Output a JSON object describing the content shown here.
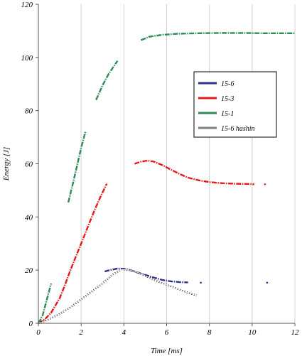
{
  "chart_data": {
    "type": "line",
    "title": "",
    "xlabel": "Time [ms]",
    "ylabel": "Energy [J]",
    "xlim": [
      0,
      12
    ],
    "ylim": [
      0,
      120
    ],
    "xticks": [
      0,
      2,
      4,
      6,
      8,
      10,
      12
    ],
    "yticks": [
      0,
      20,
      40,
      60,
      80,
      100,
      120
    ],
    "grid": "vertical",
    "legend_position": "right-middle",
    "series": [
      {
        "name": "15-6",
        "color": "#2e3192",
        "style": "solid",
        "segments": [
          [
            [
              3.1,
              19.5
            ],
            [
              3.4,
              20.1
            ],
            [
              3.7,
              20.6
            ],
            [
              4.0,
              20.5
            ],
            [
              4.3,
              20.0
            ],
            [
              4.6,
              19.2
            ],
            [
              5.0,
              18.2
            ],
            [
              5.4,
              17.2
            ],
            [
              5.8,
              16.3
            ],
            [
              6.2,
              15.8
            ],
            [
              6.6,
              15.5
            ],
            [
              7.0,
              15.4
            ]
          ],
          [
            [
              7.6,
              15.3
            ]
          ],
          [
            [
              10.7,
              15.3
            ]
          ]
        ]
      },
      {
        "name": "15-3",
        "color": "#e41a1c",
        "style": "solid",
        "segments": [
          [
            [
              0.0,
              0.0
            ],
            [
              0.3,
              1.5
            ],
            [
              0.6,
              4.0
            ],
            [
              1.0,
              9.5
            ],
            [
              1.2,
              13.5
            ],
            [
              1.5,
              20.0
            ],
            [
              1.7,
              24.0
            ],
            [
              2.0,
              30.0
            ],
            [
              2.3,
              36.0
            ],
            [
              2.6,
              42.0
            ],
            [
              2.9,
              47.5
            ],
            [
              3.2,
              52.5
            ]
          ],
          [
            [
              4.5,
              60.0
            ],
            [
              4.8,
              60.8
            ],
            [
              5.1,
              61.2
            ],
            [
              5.4,
              60.8
            ],
            [
              5.8,
              59.5
            ],
            [
              6.2,
              57.8
            ],
            [
              6.6,
              56.2
            ],
            [
              7.0,
              54.8
            ],
            [
              7.5,
              53.8
            ],
            [
              8.0,
              53.1
            ],
            [
              8.6,
              52.7
            ],
            [
              9.2,
              52.5
            ],
            [
              9.8,
              52.4
            ],
            [
              10.1,
              52.3
            ]
          ],
          [
            [
              10.6,
              52.3
            ]
          ]
        ]
      },
      {
        "name": "15-1",
        "color": "#2e8b57",
        "style": "solid",
        "segments": [
          [
            [
              0.0,
              0.0
            ],
            [
              0.2,
              3.0
            ],
            [
              0.4,
              9.0
            ],
            [
              0.6,
              15.0
            ]
          ],
          [
            [
              1.4,
              45.5
            ],
            [
              1.6,
              52.0
            ],
            [
              1.8,
              59.0
            ],
            [
              2.0,
              66.0
            ],
            [
              2.2,
              72.0
            ]
          ],
          [
            [
              2.7,
              84.0
            ],
            [
              3.0,
              89.5
            ],
            [
              3.3,
              94.0
            ],
            [
              3.6,
              97.5
            ],
            [
              3.7,
              98.7
            ]
          ],
          [
            [
              4.8,
              106.5
            ],
            [
              5.2,
              107.8
            ],
            [
              5.8,
              108.5
            ],
            [
              6.5,
              108.9
            ],
            [
              7.5,
              109.1
            ],
            [
              8.5,
              109.2
            ],
            [
              9.5,
              109.2
            ],
            [
              10.5,
              109.1
            ],
            [
              11.5,
              109.1
            ],
            [
              12.0,
              109.1
            ]
          ]
        ]
      },
      {
        "name": "15-6 hashin",
        "color": "#000000",
        "style": "double",
        "segments": [
          [
            [
              0.0,
              0.0
            ],
            [
              0.5,
              1.5
            ],
            [
              1.0,
              3.5
            ],
            [
              1.5,
              6.0
            ],
            [
              2.0,
              9.0
            ],
            [
              2.5,
              12.0
            ],
            [
              3.0,
              15.0
            ],
            [
              3.5,
              18.5
            ],
            [
              3.9,
              20.3
            ],
            [
              4.3,
              20.0
            ],
            [
              4.7,
              19.0
            ],
            [
              5.1,
              17.5
            ],
            [
              5.5,
              16.0
            ],
            [
              6.0,
              14.5
            ],
            [
              6.5,
              13.0
            ],
            [
              7.0,
              11.5
            ],
            [
              7.4,
              10.5
            ]
          ]
        ]
      }
    ]
  }
}
